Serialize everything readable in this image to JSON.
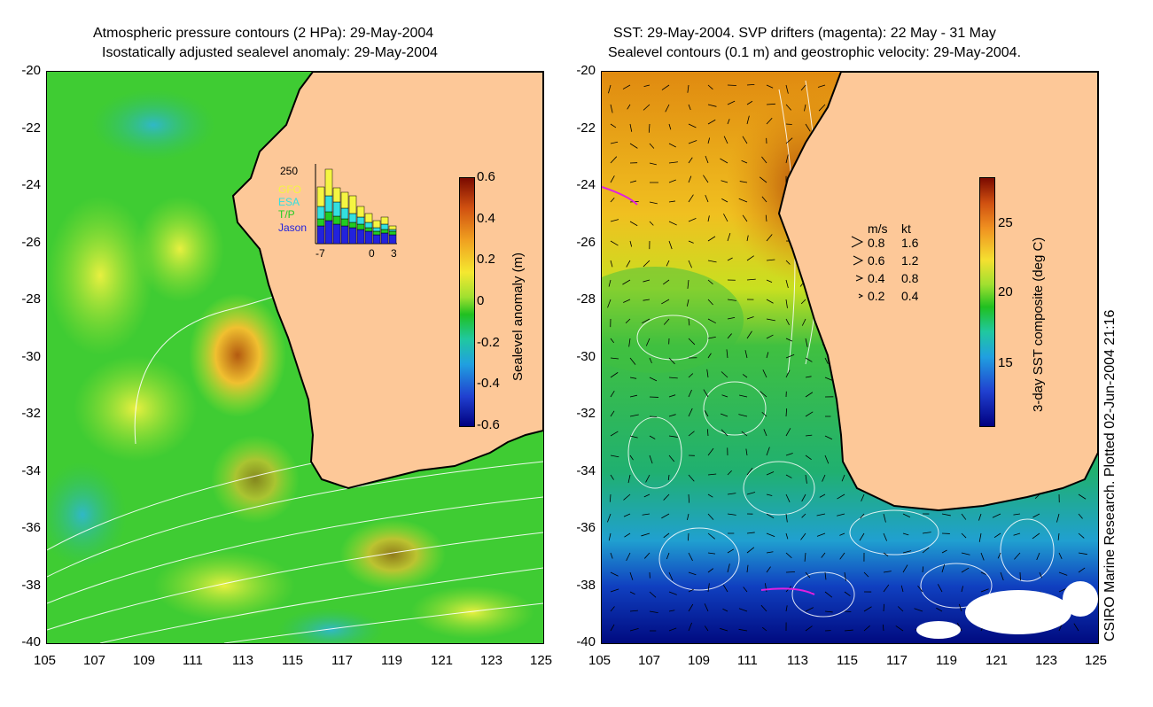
{
  "left": {
    "title_line1": "Atmospheric pressure contours (2 HPa): 29-May-2004",
    "title_line2": "Isostatically adjusted sealevel anomaly: 29-May-2004",
    "colorbar_label": "Sealevel anomaly (m)",
    "colorbar_ticks": [
      "0.6",
      "0.4",
      "0.2",
      "0",
      "-0.2",
      "-0.4",
      "-0.6"
    ],
    "inset": {
      "y_tick": "250",
      "x_ticks": [
        "-7",
        "0",
        "3"
      ],
      "legend": [
        "GFO",
        "ESA",
        "T/P",
        "Jason"
      ],
      "legend_colors": [
        "#f5f542",
        "#33e0e0",
        "#22cc22",
        "#2222dd"
      ]
    }
  },
  "right": {
    "title_line1": "SST: 29-May-2004. SVP drifters (magenta): 22 May - 31 May",
    "title_line2": "Sealevel contours (0.1 m) and geostrophic velocity: 29-May-2004.",
    "colorbar_label": "3-day SST composite (deg C)",
    "colorbar_ticks": [
      "25",
      "20",
      "15"
    ],
    "speed_key": {
      "header_ms": "m/s",
      "header_kt": "kt",
      "rows": [
        {
          "ms": "0.8",
          "kt": "1.6"
        },
        {
          "ms": "0.6",
          "kt": "1.2"
        },
        {
          "ms": "0.4",
          "kt": "0.8"
        },
        {
          "ms": "0.2",
          "kt": "0.4"
        }
      ]
    }
  },
  "y_ticks": [
    "-20",
    "-22",
    "-24",
    "-26",
    "-28",
    "-30",
    "-32",
    "-34",
    "-36",
    "-38",
    "-40"
  ],
  "x_ticks": [
    "105",
    "107",
    "109",
    "111",
    "113",
    "115",
    "117",
    "119",
    "121",
    "123",
    "125"
  ],
  "credit": "CSIRO Marine Research. Plotted 02-Jun-2004 21:16",
  "colors": {
    "land": "#fdc898",
    "coast": "#000000",
    "ocean_left": "#33cc33",
    "ocean_right_warm": "#e08a10"
  }
}
